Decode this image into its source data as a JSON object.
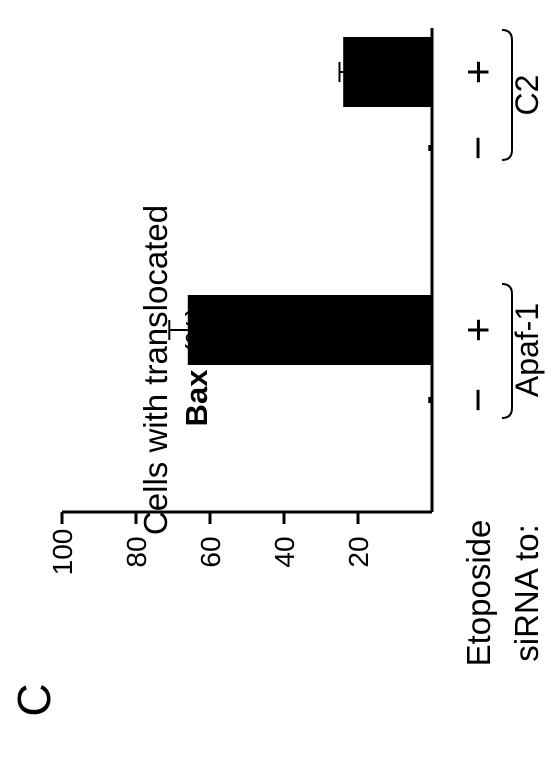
{
  "panel_label": "C",
  "chart_data": {
    "type": "bar",
    "orientation": "rotated-90-ccw",
    "ylabel_lines": [
      "Cells with translocated",
      "Bax",
      "(%)"
    ],
    "yticks": [
      "100",
      "80",
      "60",
      "40",
      "20"
    ],
    "ytick_values": [
      100,
      80,
      60,
      40,
      20
    ],
    "ylim": [
      0,
      100
    ],
    "row_labels": [
      "Etoposide",
      "siRNA to:"
    ],
    "categories": [
      "−",
      "+",
      "−",
      "+"
    ],
    "values": [
      1,
      66,
      1,
      24
    ],
    "errors": [
      0,
      5,
      0,
      1
    ],
    "groups": [
      {
        "label": "Apaf-1",
        "members": [
          0,
          1
        ]
      },
      {
        "label": "C2",
        "members": [
          2,
          3
        ]
      }
    ],
    "colors": {
      "bar": "#000000",
      "axis": "#000000"
    }
  }
}
